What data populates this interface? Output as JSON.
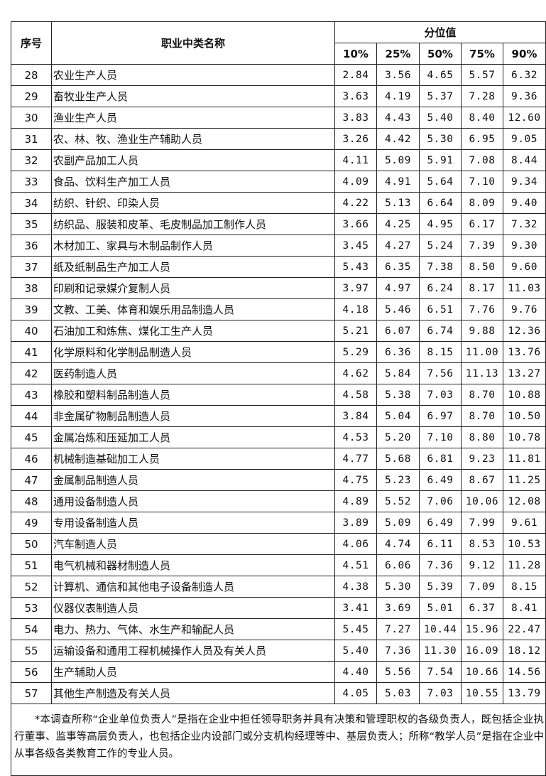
{
  "header": {
    "seq": "序号",
    "name": "职业中类名称",
    "group": "分位值",
    "percentiles": [
      "10%",
      "25%",
      "50%",
      "75%",
      "90%"
    ]
  },
  "rows": [
    {
      "seq": "28",
      "name": "农业生产人员",
      "values": [
        "2.84",
        "3.56",
        "4.65",
        "5.57",
        "6.32"
      ]
    },
    {
      "seq": "29",
      "name": "畜牧业生产人员",
      "values": [
        "3.63",
        "4.19",
        "5.37",
        "7.28",
        "9.36"
      ]
    },
    {
      "seq": "30",
      "name": "渔业生产人员",
      "values": [
        "3.83",
        "4.43",
        "5.40",
        "8.40",
        "12.60"
      ]
    },
    {
      "seq": "31",
      "name": "农、林、牧、渔业生产辅助人员",
      "values": [
        "3.26",
        "4.42",
        "5.30",
        "6.95",
        "9.05"
      ]
    },
    {
      "seq": "32",
      "name": "农副产品加工人员",
      "values": [
        "4.11",
        "5.09",
        "5.91",
        "7.08",
        "8.44"
      ]
    },
    {
      "seq": "33",
      "name": "食品、饮料生产加工人员",
      "values": [
        "4.09",
        "4.91",
        "5.64",
        "7.10",
        "9.34"
      ]
    },
    {
      "seq": "34",
      "name": "纺织、针织、印染人员",
      "values": [
        "4.22",
        "5.13",
        "6.64",
        "8.09",
        "9.40"
      ]
    },
    {
      "seq": "35",
      "name": "纺织品、服装和皮革、毛皮制品加工制作人员",
      "values": [
        "3.66",
        "4.25",
        "4.95",
        "6.17",
        "7.32"
      ]
    },
    {
      "seq": "36",
      "name": "木材加工、家具与木制品制作人员",
      "values": [
        "3.45",
        "4.27",
        "5.24",
        "7.39",
        "9.30"
      ]
    },
    {
      "seq": "37",
      "name": "纸及纸制品生产加工人员",
      "values": [
        "5.43",
        "6.35",
        "7.38",
        "8.50",
        "9.60"
      ]
    },
    {
      "seq": "38",
      "name": "印刷和记录媒介复制人员",
      "values": [
        "3.97",
        "4.97",
        "6.24",
        "8.17",
        "11.03"
      ]
    },
    {
      "seq": "39",
      "name": "文教、工美、体育和娱乐用品制造人员",
      "values": [
        "4.18",
        "5.46",
        "6.51",
        "7.76",
        "9.76"
      ]
    },
    {
      "seq": "40",
      "name": "石油加工和炼焦、煤化工生产人员",
      "values": [
        "5.21",
        "6.07",
        "6.74",
        "9.88",
        "12.36"
      ]
    },
    {
      "seq": "41",
      "name": "化学原料和化学制品制造人员",
      "values": [
        "5.29",
        "6.36",
        "8.15",
        "11.00",
        "13.76"
      ]
    },
    {
      "seq": "42",
      "name": "医药制造人员",
      "values": [
        "4.62",
        "5.84",
        "7.56",
        "11.13",
        "13.27"
      ]
    },
    {
      "seq": "43",
      "name": "橡胶和塑料制品制造人员",
      "values": [
        "4.58",
        "5.38",
        "7.03",
        "8.70",
        "10.88"
      ]
    },
    {
      "seq": "44",
      "name": "非金属矿物制品制造人员",
      "values": [
        "3.84",
        "5.04",
        "6.97",
        "8.70",
        "10.50"
      ]
    },
    {
      "seq": "45",
      "name": "金属冶炼和压延加工人员",
      "values": [
        "4.53",
        "5.20",
        "7.10",
        "8.80",
        "10.78"
      ]
    },
    {
      "seq": "46",
      "name": "机械制造基础加工人员",
      "values": [
        "4.77",
        "5.68",
        "6.81",
        "9.23",
        "11.81"
      ]
    },
    {
      "seq": "47",
      "name": "金属制品制造人员",
      "values": [
        "4.75",
        "5.23",
        "6.49",
        "8.67",
        "11.25"
      ]
    },
    {
      "seq": "48",
      "name": "通用设备制造人员",
      "values": [
        "4.89",
        "5.52",
        "7.06",
        "10.06",
        "12.08"
      ]
    },
    {
      "seq": "49",
      "name": "专用设备制造人员",
      "values": [
        "3.89",
        "5.09",
        "6.49",
        "7.99",
        "9.61"
      ]
    },
    {
      "seq": "50",
      "name": "汽车制造人员",
      "values": [
        "4.06",
        "4.74",
        "6.11",
        "8.53",
        "10.53"
      ]
    },
    {
      "seq": "51",
      "name": "电气机械和器材制造人员",
      "values": [
        "4.51",
        "6.06",
        "7.36",
        "9.12",
        "11.28"
      ]
    },
    {
      "seq": "52",
      "name": "计算机、通信和其他电子设备制造人员",
      "values": [
        "4.38",
        "5.30",
        "5.39",
        "7.09",
        "8.15"
      ]
    },
    {
      "seq": "53",
      "name": "仪器仪表制造人员",
      "values": [
        "3.41",
        "3.69",
        "5.01",
        "6.37",
        "8.41"
      ]
    },
    {
      "seq": "54",
      "name": "电力、热力、气体、水生产和输配人员",
      "values": [
        "5.45",
        "7.27",
        "10.44",
        "15.96",
        "22.47"
      ]
    },
    {
      "seq": "55",
      "name": "运输设备和通用工程机械操作人员及有关人员",
      "values": [
        "5.40",
        "7.36",
        "11.30",
        "16.09",
        "18.12"
      ]
    },
    {
      "seq": "56",
      "name": "生产辅助人员",
      "values": [
        "4.40",
        "5.56",
        "7.54",
        "10.66",
        "14.56"
      ]
    },
    {
      "seq": "57",
      "name": "其他生产制造及有关人员",
      "values": [
        "4.05",
        "5.03",
        "7.03",
        "10.55",
        "13.79"
      ]
    }
  ],
  "footnote": "*本调查所称“企业单位负责人”是指在企业中担任领导职务并具有决策和管理职权的各级负责人，既包括企业执行董事、监事等高层负责人，也包括企业内设部门或分支机构经理等中、基层负责人；所称“教学人员”是指在企业中从事各级各类教育工作的专业人员。"
}
